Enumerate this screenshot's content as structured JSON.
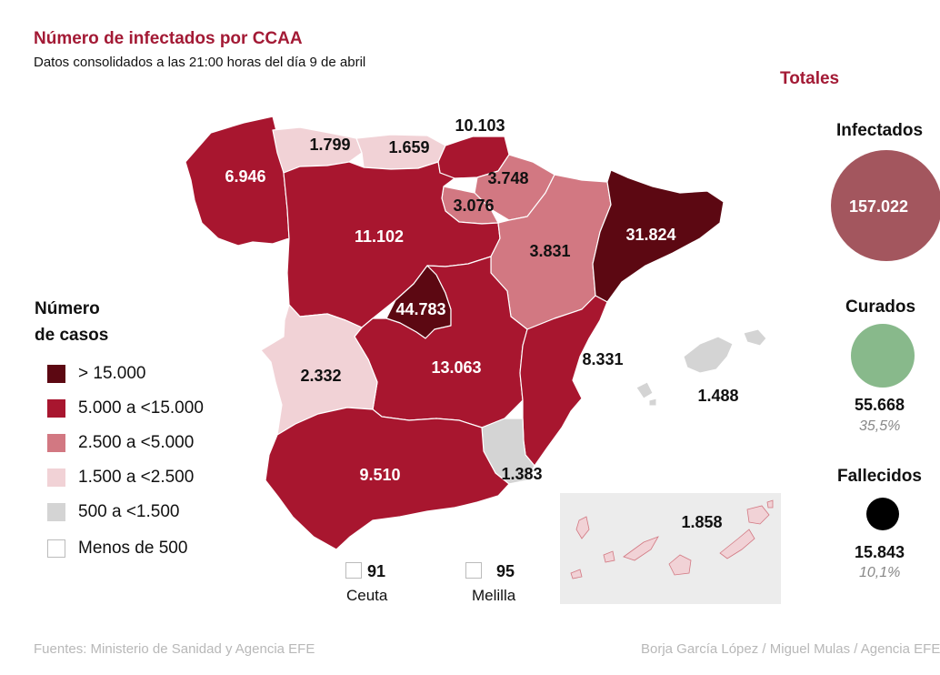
{
  "header": {
    "title": "Número de infectados por CCAA",
    "subtitle": "Datos consolidados a las 21:00 horas del día 9 de abril"
  },
  "colors": {
    "level_5": "#5c0812",
    "level_4": "#a8162f",
    "level_3": "#d27882",
    "level_2": "#f1d2d6",
    "level_1": "#d4d4d4",
    "level_0": "#ffffff",
    "infectados": "#a3565e",
    "curados": "#88b98b",
    "fallecidos": "#000000",
    "canarias_bg": "#ececec"
  },
  "legend": {
    "title_line1": "Número",
    "title_line2": "de casos",
    "items": [
      {
        "label": "> 15.000",
        "color": "#5c0812"
      },
      {
        "label": "5.000 a <15.000",
        "color": "#a8162f"
      },
      {
        "label": "2.500 a <5.000",
        "color": "#d27882"
      },
      {
        "label": "1.500 a <2.500",
        "color": "#f1d2d6"
      },
      {
        "label": "500 a <1.500",
        "color": "#d4d4d4"
      },
      {
        "label": "Menos de 500",
        "color": "#ffffff"
      }
    ]
  },
  "regions": {
    "galicia": "6.946",
    "asturias": "1.799",
    "cantabria": "1.659",
    "pais_vasco": "10.103",
    "navarra": "3.748",
    "la_rioja": "3.076",
    "aragon": "3.831",
    "cataluna": "31.824",
    "castilla_leon": "11.102",
    "madrid": "44.783",
    "castilla_la_mancha": "13.063",
    "extremadura": "2.332",
    "valencia": "8.331",
    "baleares": "1.488",
    "murcia": "1.383",
    "andalucia": "9.510",
    "canarias": "1.858"
  },
  "cities": {
    "ceuta_value": "91",
    "ceuta_name": "Ceuta",
    "melilla_value": "95",
    "melilla_name": "Melilla"
  },
  "totals": {
    "title": "Totales",
    "infectados_label": "Infectados",
    "infectados_value": "157.022",
    "curados_label": "Curados",
    "curados_value": "55.668",
    "curados_pct": "35,5%",
    "fallecidos_label": "Fallecidos",
    "fallecidos_value": "15.843",
    "fallecidos_pct": "10,1%"
  },
  "footer": {
    "sources": "Fuentes: Ministerio de Sanidad y Agencia EFE",
    "credits": "Borja García López / Miguel Mulas / Agencia EFE"
  }
}
